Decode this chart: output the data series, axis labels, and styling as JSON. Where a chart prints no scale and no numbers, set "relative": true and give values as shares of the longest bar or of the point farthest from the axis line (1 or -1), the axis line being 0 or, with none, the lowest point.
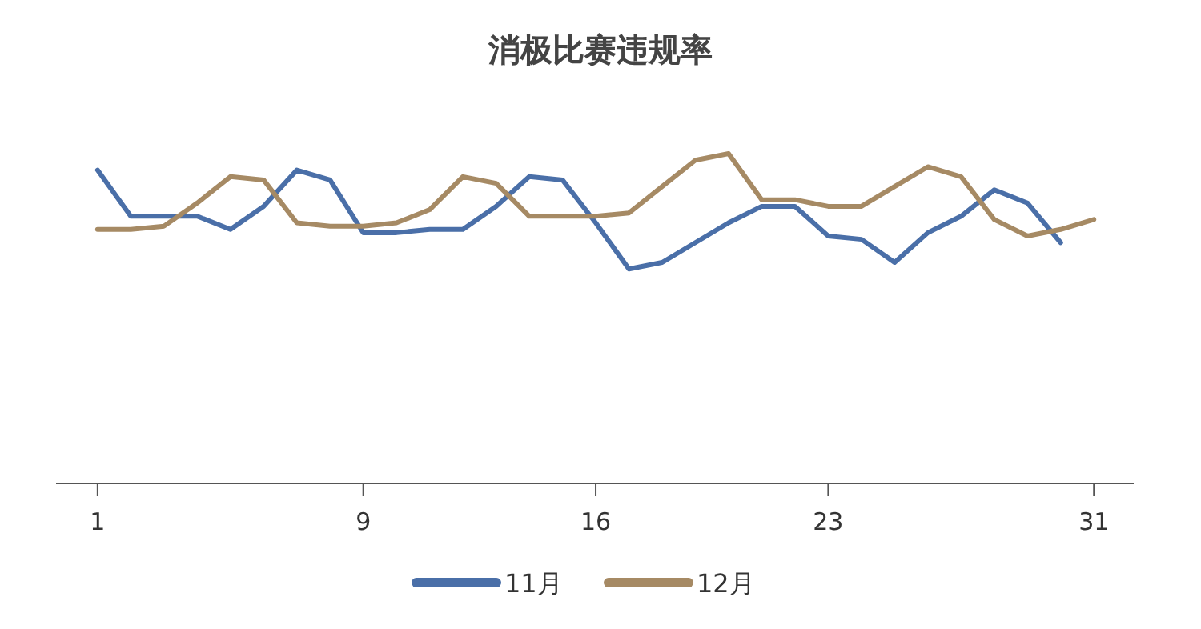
{
  "chart_data": {
    "type": "line",
    "title": "消极比赛违规率",
    "relative": true,
    "xlim": [
      -0.25,
      32.2
    ],
    "xticks": [
      1,
      9,
      16,
      23,
      31
    ],
    "legend": "bottom",
    "grid": false,
    "marker": "none",
    "line_style": "solid",
    "series": [
      {
        "name": "11月",
        "color": "#4a6fa8",
        "x": [
          1,
          2,
          3,
          4,
          5,
          6,
          7,
          8,
          9,
          10,
          11,
          12,
          13,
          14,
          15,
          16,
          17,
          18,
          19,
          20,
          21,
          22,
          23,
          24,
          25,
          26,
          27,
          28,
          29,
          30
        ],
        "values": [
          0.95,
          0.81,
          0.81,
          0.81,
          0.77,
          0.84,
          0.95,
          0.92,
          0.76,
          0.76,
          0.77,
          0.77,
          0.84,
          0.93,
          0.92,
          0.79,
          0.65,
          0.67,
          0.73,
          0.79,
          0.84,
          0.84,
          0.75,
          0.74,
          0.67,
          0.76,
          0.81,
          0.89,
          0.85,
          0.73
        ]
      },
      {
        "name": "12月",
        "color": "#a68a64",
        "x": [
          1,
          2,
          3,
          4,
          5,
          6,
          7,
          8,
          9,
          10,
          11,
          12,
          13,
          14,
          15,
          16,
          17,
          18,
          19,
          20,
          21,
          22,
          23,
          24,
          25,
          26,
          27,
          28,
          29,
          30,
          31
        ],
        "values": [
          0.77,
          0.77,
          0.78,
          0.85,
          0.93,
          0.92,
          0.79,
          0.78,
          0.78,
          0.79,
          0.83,
          0.93,
          0.91,
          0.81,
          0.81,
          0.81,
          0.82,
          0.9,
          0.98,
          1,
          0.86,
          0.86,
          0.84,
          0.84,
          0.9,
          0.96,
          0.93,
          0.8,
          0.75,
          0.77,
          0.8
        ]
      }
    ]
  }
}
